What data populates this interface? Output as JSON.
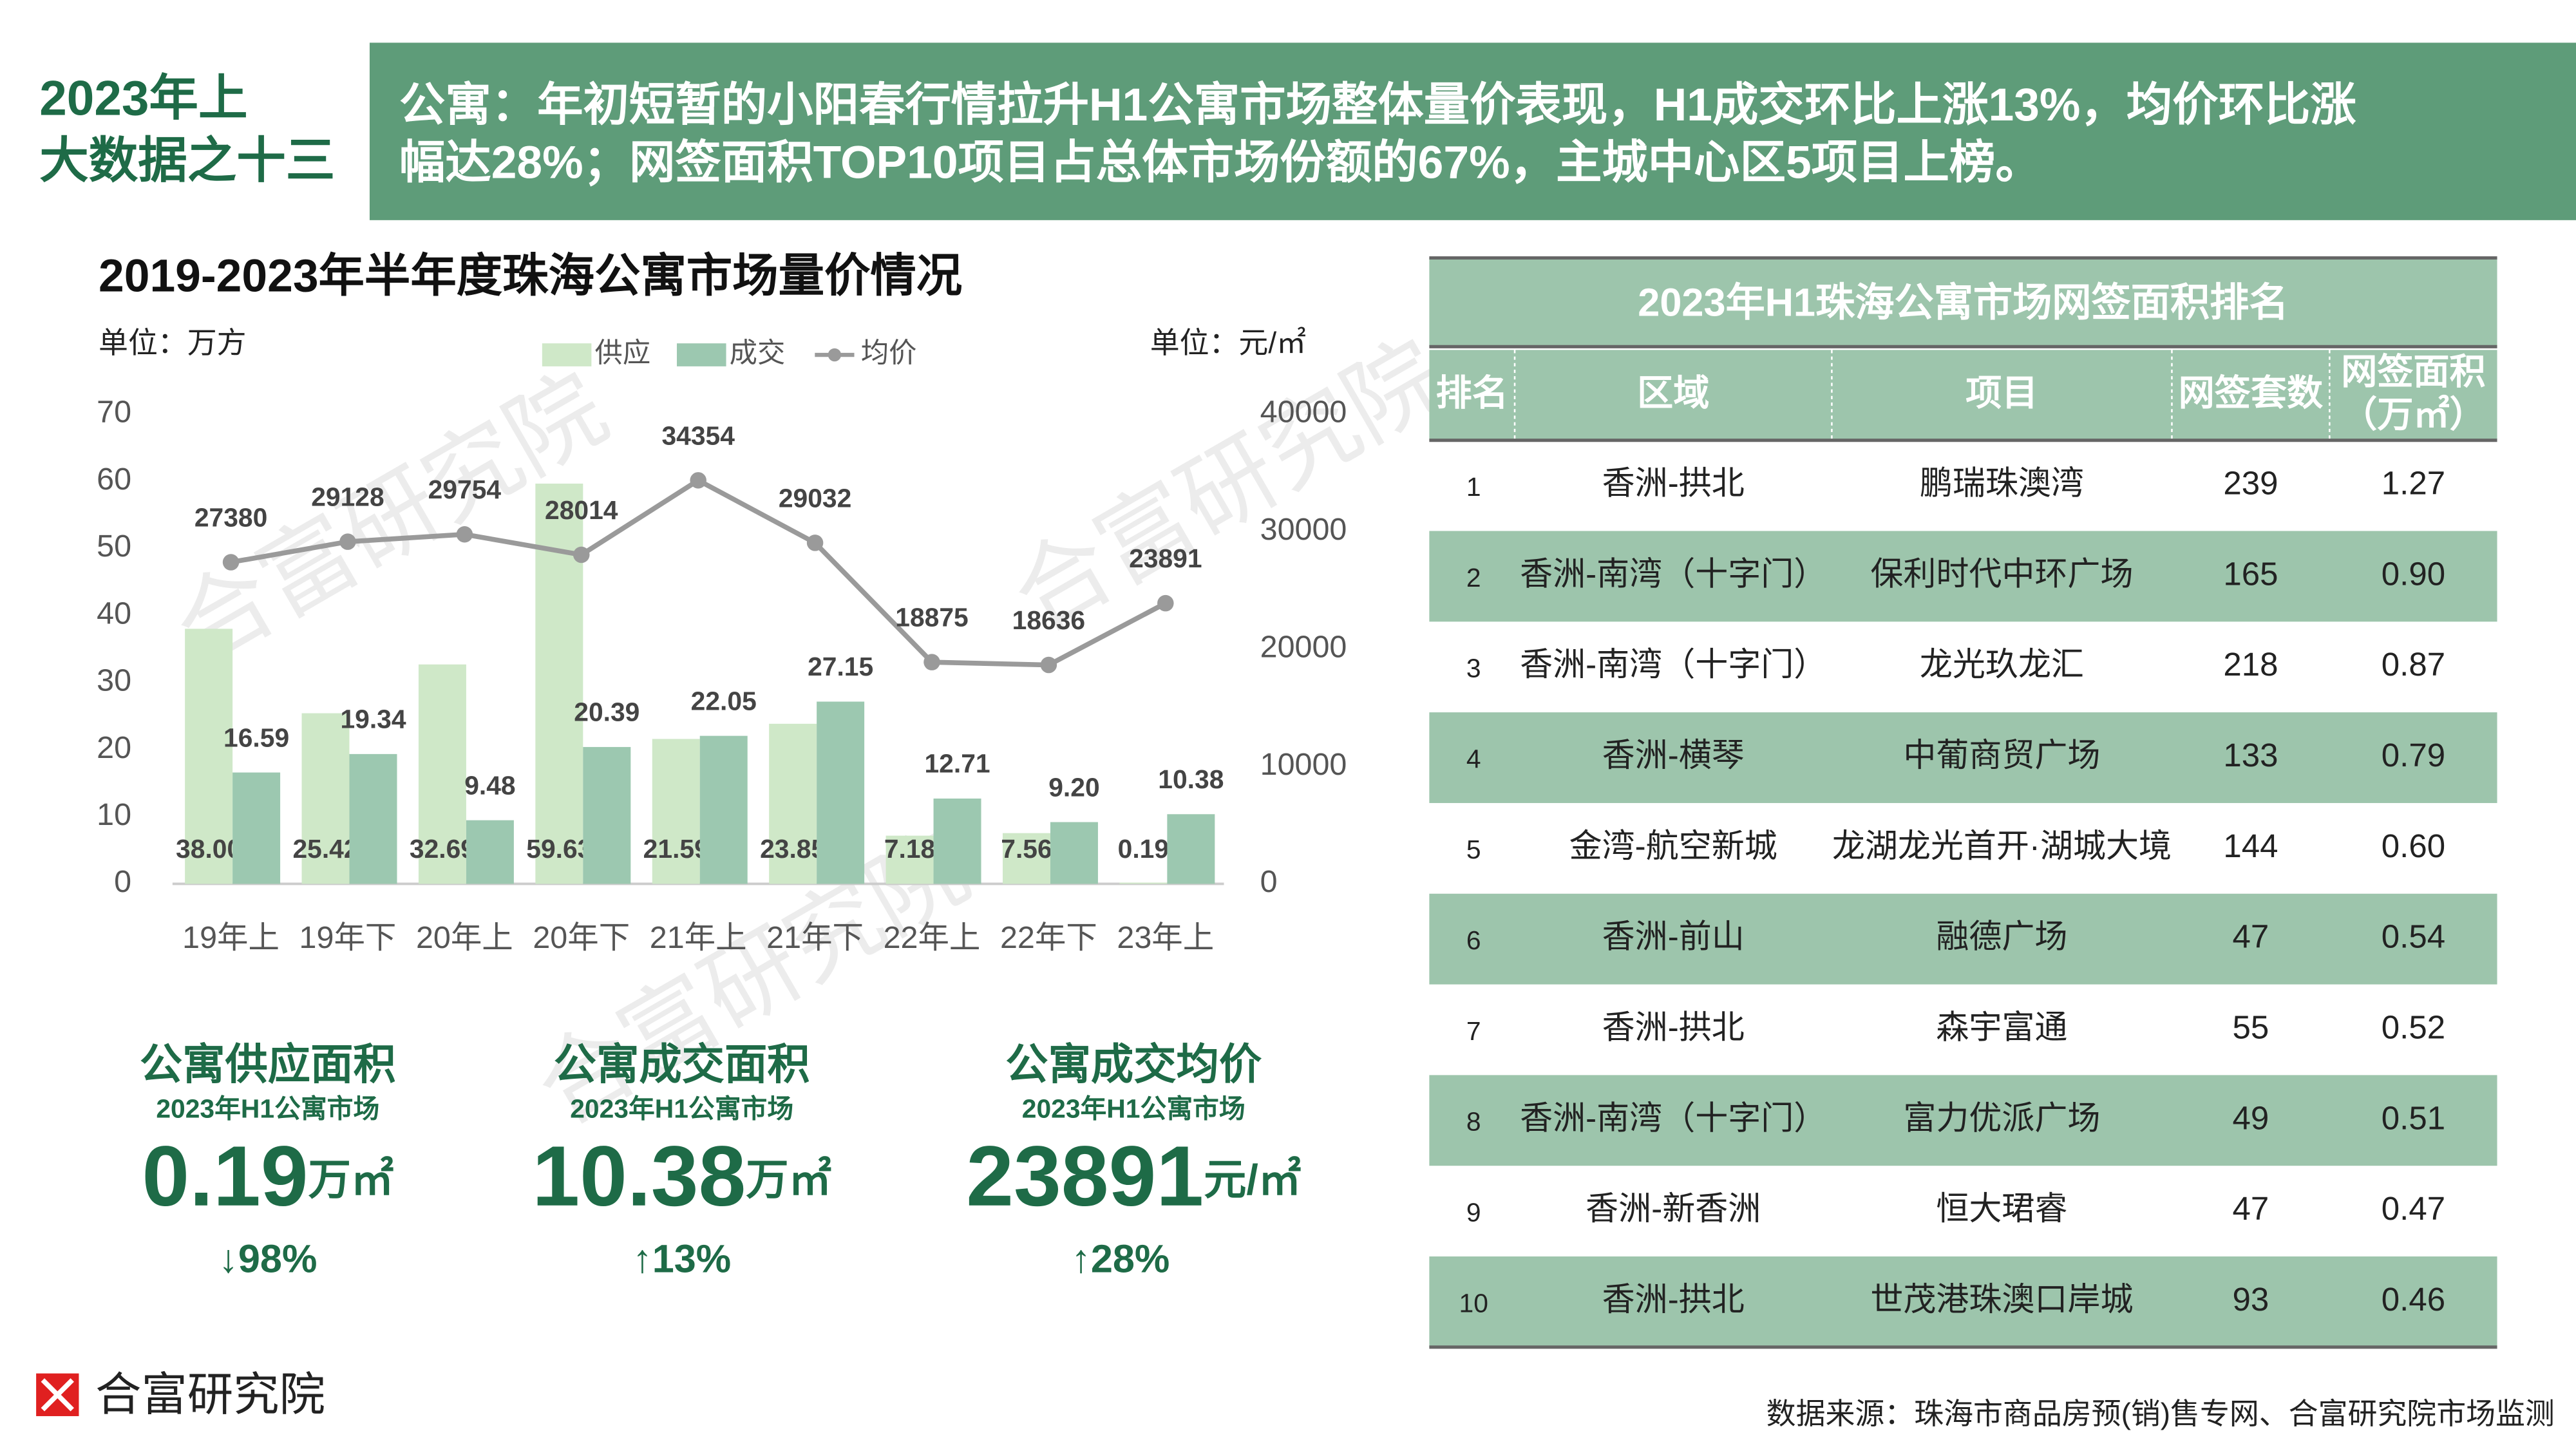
{
  "header": {
    "title_lines": [
      "2023年上",
      "大数据之十三"
    ],
    "banner_lines": [
      "公寓：年初短暂的小阳春行情拉升H1公寓市场整体量价表现，H1成交环比上涨13%，均价环比涨",
      "幅达28%；网签面积TOP10项目占总体市场份额的67%，主城中心区5项目上榜。"
    ]
  },
  "watermark": "合富研究院",
  "chart_data": {
    "type": "bar",
    "title": "2019-2023年半年度珠海公寓市场量价情况",
    "y_unit": "单位：万方",
    "y2_unit": "单位：元/㎡",
    "categories": [
      "19年上",
      "19年下",
      "20年上",
      "20年下",
      "21年上",
      "21年下",
      "22年上",
      "22年下",
      "23年上"
    ],
    "series": [
      {
        "name": "供应",
        "type": "bar",
        "color": "#cfe8c8",
        "values": [
          38,
          25.42,
          32.69,
          59.63,
          21.59,
          23.85,
          7.18,
          7.56,
          0.19
        ],
        "value_labels": [
          "38.00",
          "25.42",
          "32.69",
          "59.63",
          "21.59",
          "23.85",
          "7.18",
          "7.56",
          "0.19"
        ]
      },
      {
        "name": "成交",
        "type": "bar",
        "color": "#9cc8b0",
        "values": [
          16.59,
          19.34,
          9.48,
          20.39,
          22.05,
          27.15,
          12.71,
          9.2,
          10.38
        ],
        "value_labels": [
          "16.59",
          "19.34",
          "9.48",
          "20.39",
          "22.05",
          "27.15",
          "12.71",
          "9.20",
          "10.38"
        ]
      },
      {
        "name": "均价",
        "type": "line",
        "axis": "y2",
        "color": "#9a9a9a",
        "values": [
          27380,
          29128,
          29754,
          28014,
          34354,
          29032,
          18875,
          18636,
          23891
        ]
      }
    ],
    "ylim": [
      0,
      70
    ],
    "yticks": [
      0,
      10,
      20,
      30,
      40,
      50,
      60,
      70
    ],
    "y2lim": [
      0,
      40000
    ],
    "y2ticks": [
      0,
      10000,
      20000,
      30000,
      40000
    ]
  },
  "stats": [
    {
      "title": "公寓供应面积",
      "subtitle": "2023年H1公寓市场",
      "value": 0.19,
      "unit": "万㎡",
      "change": "↓98%"
    },
    {
      "title": "公寓成交面积",
      "subtitle": "2023年H1公寓市场",
      "value": 10.38,
      "unit": "万㎡",
      "change": "↑13%"
    },
    {
      "title": "公寓成交均价",
      "subtitle": "2023年H1公寓市场",
      "value": 23891,
      "unit": "元/㎡",
      "change": "↑28%"
    }
  ],
  "table": {
    "title": "2023年H1珠海公寓市场网签面积排名",
    "columns": [
      [
        "排名"
      ],
      [
        "区域"
      ],
      [
        "项目"
      ],
      [
        "网签套数"
      ],
      [
        "网签面积",
        "（万㎡）"
      ]
    ],
    "rows": [
      [
        1,
        "香洲-拱北",
        "鹏瑞珠澳湾",
        239,
        "1.27"
      ],
      [
        2,
        "香洲-南湾（十字门）",
        "保利时代中环广场",
        165,
        "0.90"
      ],
      [
        3,
        "香洲-南湾（十字门）",
        "龙光玖龙汇",
        218,
        "0.87"
      ],
      [
        4,
        "香洲-横琴",
        "中葡商贸广场",
        133,
        "0.79"
      ],
      [
        5,
        "金湾-航空新城",
        "龙湖龙光首开·湖城大境",
        144,
        "0.60"
      ],
      [
        6,
        "香洲-前山",
        "融德广场",
        47,
        "0.54"
      ],
      [
        7,
        "香洲-拱北",
        "森宇富通",
        55,
        "0.52"
      ],
      [
        8,
        "香洲-南湾（十字门）",
        "富力优派广场",
        49,
        "0.51"
      ],
      [
        9,
        "香洲-新香洲",
        "恒大珺睿",
        47,
        "0.47"
      ],
      [
        10,
        "香洲-拱北",
        "世茂港珠澳口岸城",
        93,
        "0.46"
      ]
    ]
  },
  "footer": {
    "logo": "合富研究院",
    "source": "数据来源：珠海市商品房预(销)售专网、合富研究院市场监测"
  }
}
